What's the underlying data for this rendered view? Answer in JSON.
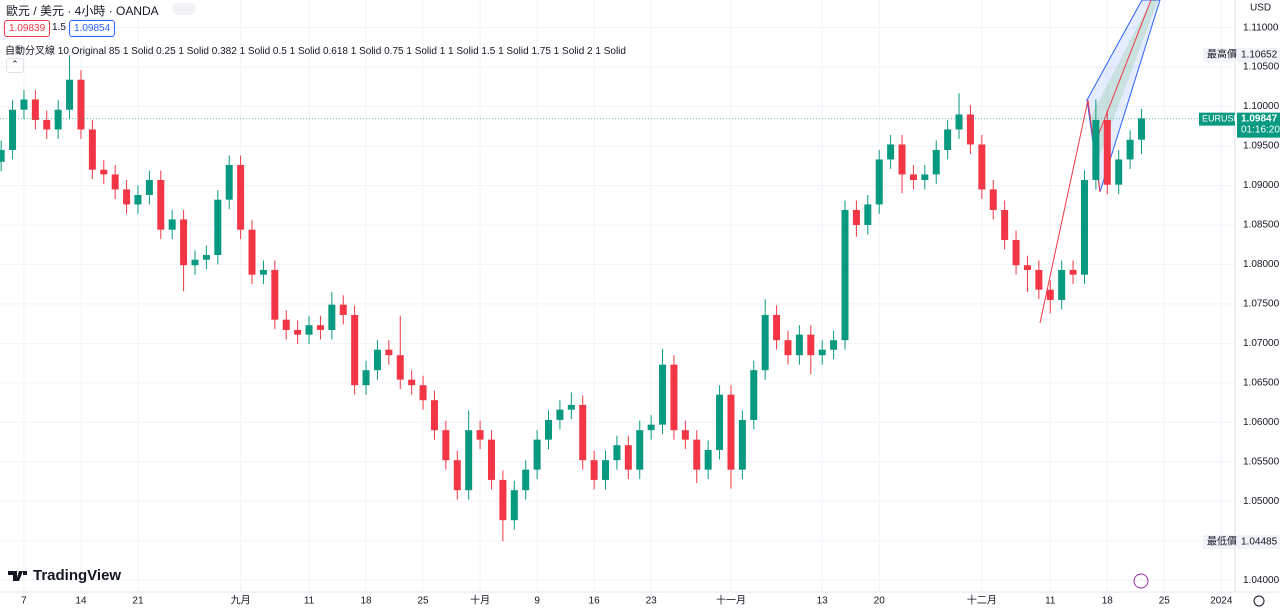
{
  "header": {
    "symbol": "歐元 / 美元 · 4小時 · OANDA",
    "bid": "1.09839",
    "spread": "1.5",
    "ask": "1.09854",
    "indicator": "自動分叉線 10 Original 85 1 Solid 0.25 1 Solid 0.382 1 Solid 0.5 1 Solid 0.618 1 Solid 0.75 1 Solid 1 1 Solid 1.5 1 Solid 1.75 1 Solid 2 1 Solid"
  },
  "logo": "TradingView",
  "chart_data": {
    "type": "candlestick",
    "currency": "USD",
    "up_color": "#089981",
    "down_color": "#f23645",
    "grid": true,
    "x": [
      -2,
      -1,
      0,
      1,
      2,
      3,
      4,
      5,
      6,
      7,
      8,
      9,
      10,
      11,
      12,
      13,
      14,
      15,
      16,
      17,
      18,
      19,
      20,
      21,
      22,
      23,
      24,
      25,
      26,
      27,
      28,
      29,
      30,
      31,
      32,
      33,
      34,
      35,
      36,
      37,
      38,
      39,
      40,
      41,
      42,
      43,
      44,
      45,
      46,
      47,
      48,
      49,
      50,
      51,
      52,
      53,
      54,
      55,
      56,
      57,
      58,
      59,
      60,
      61,
      62,
      63,
      64,
      65,
      66,
      67,
      68,
      69,
      70,
      71,
      72,
      73,
      74,
      75,
      76,
      77,
      78,
      79,
      80,
      81,
      82,
      83,
      84,
      85,
      86,
      87,
      88,
      89,
      90,
      91,
      92,
      93,
      94,
      95,
      96,
      97,
      98
    ],
    "open": [
      1.093,
      1.0945,
      1.0996,
      1.1009,
      1.0983,
      1.0971,
      1.0996,
      1.1034,
      1.0971,
      1.092,
      1.0914,
      1.0895,
      1.0876,
      1.0888,
      1.0907,
      1.0844,
      1.0857,
      1.0799,
      1.0806,
      1.0812,
      1.0882,
      1.0926,
      1.0844,
      1.0787,
      1.0793,
      1.073,
      1.0717,
      1.0711,
      1.0723,
      1.0717,
      1.0749,
      1.0736,
      1.0647,
      1.0666,
      1.0692,
      1.0685,
      1.0654,
      1.0647,
      1.0628,
      1.059,
      1.0552,
      1.0514,
      1.059,
      1.0578,
      1.0527,
      1.0476,
      1.0514,
      1.054,
      1.0578,
      1.0603,
      1.0616,
      1.0622,
      1.0552,
      1.0527,
      1.0552,
      1.0571,
      1.054,
      1.059,
      1.0597,
      1.0673,
      1.059,
      1.0578,
      1.054,
      1.0565,
      1.0635,
      1.054,
      1.0603,
      1.0666,
      1.0736,
      1.0704,
      1.0685,
      1.0711,
      1.0685,
      1.0692,
      1.0704,
      1.0869,
      1.085,
      1.0876,
      1.0933,
      1.0952,
      1.0914,
      1.0907,
      1.0914,
      1.0945,
      1.0971,
      1.099,
      1.0952,
      1.0895,
      1.0869,
      1.0831,
      1.0799,
      1.0793,
      1.0768,
      1.0755,
      1.0793,
      1.0787,
      1.0907,
      1.0983,
      1.0901,
      1.0933,
      1.0958
    ],
    "high": [
      1.0957,
      1.1008,
      1.1021,
      1.1021,
      1.0995,
      1.1008,
      1.1065,
      1.1046,
      1.0983,
      1.0932,
      1.0926,
      1.0907,
      1.09,
      1.0919,
      1.0919,
      1.0869,
      1.0869,
      1.0818,
      1.0824,
      1.0894,
      1.0938,
      1.0938,
      1.0856,
      1.0805,
      1.0805,
      1.0742,
      1.0729,
      1.0735,
      1.0735,
      1.0765,
      1.0761,
      1.0748,
      1.0678,
      1.0704,
      1.0704,
      1.0735,
      1.0666,
      1.0659,
      1.064,
      1.0602,
      1.0564,
      1.0615,
      1.0602,
      1.059,
      1.0539,
      1.0526,
      1.0552,
      1.059,
      1.0615,
      1.0628,
      1.0638,
      1.0634,
      1.0564,
      1.0564,
      1.0583,
      1.0583,
      1.0602,
      1.0609,
      1.0693,
      1.0685,
      1.0602,
      1.059,
      1.0577,
      1.0647,
      1.0647,
      1.0615,
      1.0678,
      1.0756,
      1.0748,
      1.0716,
      1.0723,
      1.0723,
      1.0704,
      1.0716,
      1.0881,
      1.0881,
      1.0888,
      1.0945,
      1.0964,
      1.0964,
      1.0926,
      1.0926,
      1.0957,
      1.0983,
      1.1017,
      1.1002,
      1.0964,
      1.0907,
      1.0881,
      1.0843,
      1.0811,
      1.0805,
      1.078,
      1.0805,
      1.0805,
      1.0919,
      1.1009,
      1.0995,
      1.0945,
      1.097,
      1.0997
    ],
    "low": [
      1.0918,
      1.0933,
      1.0984,
      1.0971,
      1.0959,
      1.0959,
      1.0984,
      1.0959,
      1.0908,
      1.0902,
      1.0883,
      1.0864,
      1.0864,
      1.0876,
      1.0832,
      1.0832,
      1.0766,
      1.0787,
      1.0794,
      1.08,
      1.087,
      1.0832,
      1.0775,
      1.0775,
      1.0718,
      1.0705,
      1.0699,
      1.0699,
      1.0705,
      1.0705,
      1.0724,
      1.0635,
      1.0635,
      1.0654,
      1.0673,
      1.0642,
      1.0635,
      1.0616,
      1.0578,
      1.054,
      1.0502,
      1.0502,
      1.0566,
      1.0515,
      1.0449,
      1.0464,
      1.0502,
      1.0528,
      1.0566,
      1.0591,
      1.0604,
      1.054,
      1.0515,
      1.0515,
      1.054,
      1.0528,
      1.0528,
      1.0578,
      1.0585,
      1.0578,
      1.0566,
      1.0523,
      1.0528,
      1.0553,
      1.0516,
      1.0528,
      1.0591,
      1.0654,
      1.0692,
      1.0673,
      1.0673,
      1.0661,
      1.0673,
      1.068,
      1.0692,
      1.0835,
      1.0838,
      1.0864,
      1.0921,
      1.089,
      1.0895,
      1.0895,
      1.0902,
      1.0933,
      1.0959,
      1.094,
      1.0883,
      1.0857,
      1.0819,
      1.0787,
      1.0765,
      1.0756,
      1.0738,
      1.0743,
      1.0775,
      1.0775,
      1.0895,
      1.0889,
      1.0889,
      1.0921,
      1.094
    ],
    "close": [
      1.0945,
      1.0996,
      1.1009,
      1.0983,
      1.0971,
      1.0996,
      1.1034,
      1.0971,
      1.092,
      1.0914,
      1.0895,
      1.0876,
      1.0888,
      1.0907,
      1.0844,
      1.0857,
      1.0799,
      1.0806,
      1.0812,
      1.0882,
      1.0926,
      1.0844,
      1.0787,
      1.0793,
      1.073,
      1.0717,
      1.0711,
      1.0723,
      1.0717,
      1.0749,
      1.0736,
      1.0647,
      1.0666,
      1.0692,
      1.0685,
      1.0654,
      1.0647,
      1.0628,
      1.059,
      1.0552,
      1.0514,
      1.059,
      1.0578,
      1.0527,
      1.0476,
      1.0514,
      1.054,
      1.0578,
      1.0603,
      1.0616,
      1.0622,
      1.0552,
      1.0527,
      1.0552,
      1.0571,
      1.054,
      1.059,
      1.0597,
      1.0673,
      1.059,
      1.0578,
      1.054,
      1.0565,
      1.0635,
      1.054,
      1.0603,
      1.0666,
      1.0736,
      1.0704,
      1.0685,
      1.0711,
      1.0685,
      1.0692,
      1.0704,
      1.0869,
      1.085,
      1.0876,
      1.0933,
      1.0952,
      1.0914,
      1.0907,
      1.0914,
      1.0945,
      1.0971,
      1.099,
      1.0952,
      1.0895,
      1.0869,
      1.0831,
      1.0799,
      1.0793,
      1.0768,
      1.0755,
      1.0793,
      1.0787,
      1.0907,
      1.0983,
      1.0901,
      1.0933,
      1.0958,
      1.0985
    ],
    "xlim": [
      -2.1,
      106.2
    ],
    "xticks": [
      {
        "value": 0,
        "label": "7"
      },
      {
        "value": 5,
        "label": "14"
      },
      {
        "value": 10,
        "label": "21"
      },
      {
        "value": 19,
        "label": "九月"
      },
      {
        "value": 25,
        "label": "11"
      },
      {
        "value": 30,
        "label": "18"
      },
      {
        "value": 35,
        "label": "25"
      },
      {
        "value": 40,
        "label": "十月"
      },
      {
        "value": 45,
        "label": "9"
      },
      {
        "value": 50,
        "label": "16"
      },
      {
        "value": 55,
        "label": "23"
      },
      {
        "value": 62,
        "label": "十一月"
      },
      {
        "value": 70,
        "label": "13"
      },
      {
        "value": 75,
        "label": "20"
      },
      {
        "value": 84,
        "label": "十二月"
      },
      {
        "value": 90,
        "label": "11"
      },
      {
        "value": 95,
        "label": "18"
      },
      {
        "value": 100,
        "label": "25"
      },
      {
        "value": 105,
        "label": "2024"
      }
    ],
    "ylim": [
      1.0385,
      1.1135
    ],
    "yticks": [
      {
        "value": 1.11,
        "label": "1.11000"
      },
      {
        "value": 1.105,
        "label": "1.10500"
      },
      {
        "value": 1.1,
        "label": "1.10000"
      },
      {
        "value": 1.095,
        "label": "1.09500"
      },
      {
        "value": 1.09,
        "label": "1.09000"
      },
      {
        "value": 1.085,
        "label": "1.08500"
      },
      {
        "value": 1.08,
        "label": "1.08000"
      },
      {
        "value": 1.075,
        "label": "1.07500"
      },
      {
        "value": 1.07,
        "label": "1.07000"
      },
      {
        "value": 1.065,
        "label": "1.06500"
      },
      {
        "value": 1.06,
        "label": "1.06000"
      },
      {
        "value": 1.055,
        "label": "1.05500"
      },
      {
        "value": 1.05,
        "label": "1.05000"
      },
      {
        "value": 1.045,
        "label": "1.04500"
      },
      {
        "value": 1.04,
        "label": "1.04000"
      }
    ],
    "high_marker": {
      "label": "最高價",
      "value": 1.10652
    },
    "low_marker": {
      "label": "最低價",
      "value": 1.04485
    },
    "last": {
      "symbol": "EURUSD",
      "value": 1.09847,
      "countdown": "01:16:20"
    }
  }
}
